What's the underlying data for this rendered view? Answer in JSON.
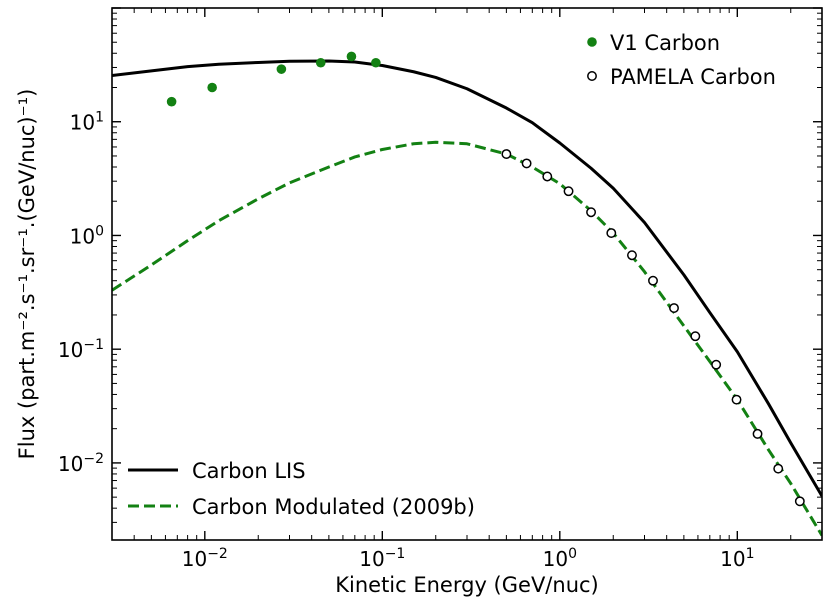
{
  "chart_data": {
    "type": "line",
    "xscale": "log",
    "yscale": "log",
    "xlabel": "Kinetic Energy (GeV/nuc)",
    "ylabel": "Flux (part.m⁻².s⁻¹.sr⁻¹.(GeV/nuc)⁻¹)",
    "xlim": [
      0.003,
      30
    ],
    "ylim": [
      0.0021,
      100
    ],
    "x_ticks": [
      {
        "value": 0.01,
        "base": "10",
        "exp": "−2"
      },
      {
        "value": 0.1,
        "base": "10",
        "exp": "−1"
      },
      {
        "value": 1,
        "base": "10",
        "exp": "0"
      },
      {
        "value": 10,
        "base": "10",
        "exp": "1"
      }
    ],
    "y_ticks": [
      {
        "value": 0.01,
        "base": "10",
        "exp": "−2"
      },
      {
        "value": 0.1,
        "base": "10",
        "exp": "−1"
      },
      {
        "value": 1,
        "base": "10",
        "exp": "0"
      },
      {
        "value": 10,
        "base": "10",
        "exp": "1"
      }
    ],
    "series": [
      {
        "name": "Carbon LIS",
        "kind": "line",
        "style": "solid",
        "color": "#000000",
        "points": [
          [
            0.003,
            25.5
          ],
          [
            0.005,
            28
          ],
          [
            0.008,
            30.5
          ],
          [
            0.012,
            32
          ],
          [
            0.02,
            33.2
          ],
          [
            0.03,
            34
          ],
          [
            0.05,
            34.2
          ],
          [
            0.07,
            33.5
          ],
          [
            0.1,
            31.2
          ],
          [
            0.15,
            27.5
          ],
          [
            0.2,
            24.5
          ],
          [
            0.3,
            19.5
          ],
          [
            0.5,
            13.2
          ],
          [
            0.7,
            9.8
          ],
          [
            1.0,
            6.5
          ],
          [
            1.5,
            3.9
          ],
          [
            2.0,
            2.6
          ],
          [
            3.0,
            1.3
          ],
          [
            5.0,
            0.45
          ],
          [
            7.0,
            0.21
          ],
          [
            10.0,
            0.095
          ],
          [
            15.0,
            0.033
          ],
          [
            20.0,
            0.015
          ],
          [
            30.0,
            0.0051
          ]
        ]
      },
      {
        "name": "Carbon Modulated (2009b)",
        "kind": "line",
        "style": "dashed",
        "color": "#138113",
        "points": [
          [
            0.003,
            0.33
          ],
          [
            0.005,
            0.55
          ],
          [
            0.008,
            0.9
          ],
          [
            0.012,
            1.35
          ],
          [
            0.02,
            2.1
          ],
          [
            0.03,
            2.9
          ],
          [
            0.05,
            4.0
          ],
          [
            0.07,
            4.9
          ],
          [
            0.1,
            5.7
          ],
          [
            0.15,
            6.4
          ],
          [
            0.2,
            6.6
          ],
          [
            0.3,
            6.4
          ],
          [
            0.5,
            5.2
          ],
          [
            0.7,
            4.0
          ],
          [
            1.0,
            2.85
          ],
          [
            1.5,
            1.65
          ],
          [
            2.0,
            1.05
          ],
          [
            3.0,
            0.48
          ],
          [
            5.0,
            0.16
          ],
          [
            7.0,
            0.078
          ],
          [
            10.0,
            0.036
          ],
          [
            15.0,
            0.013
          ],
          [
            20.0,
            0.0066
          ],
          [
            30.0,
            0.0023
          ]
        ]
      },
      {
        "name": "V1 Carbon",
        "kind": "scatter",
        "marker": "filled-circle",
        "color": "#138113",
        "points": [
          [
            0.0065,
            15
          ],
          [
            0.011,
            20
          ],
          [
            0.027,
            29
          ],
          [
            0.045,
            33
          ],
          [
            0.067,
            37.5
          ],
          [
            0.092,
            33
          ]
        ]
      },
      {
        "name": "PAMELA Carbon",
        "kind": "scatter",
        "marker": "open-circle",
        "color": "#000000",
        "points": [
          [
            0.5,
            5.2
          ],
          [
            0.65,
            4.3
          ],
          [
            0.85,
            3.3
          ],
          [
            1.12,
            2.45
          ],
          [
            1.5,
            1.6
          ],
          [
            1.95,
            1.05
          ],
          [
            2.55,
            0.67
          ],
          [
            3.35,
            0.4
          ],
          [
            4.4,
            0.23
          ],
          [
            5.8,
            0.13
          ],
          [
            7.6,
            0.073
          ],
          [
            9.9,
            0.036
          ],
          [
            13.0,
            0.018
          ],
          [
            17.0,
            0.0089
          ],
          [
            22.5,
            0.0046
          ]
        ]
      }
    ],
    "legends": [
      {
        "position": "top-right",
        "entries": [
          "V1 Carbon",
          "PAMELA Carbon"
        ]
      },
      {
        "position": "bottom-left",
        "entries": [
          "Carbon LIS",
          "Carbon Modulated (2009b)"
        ]
      }
    ]
  }
}
